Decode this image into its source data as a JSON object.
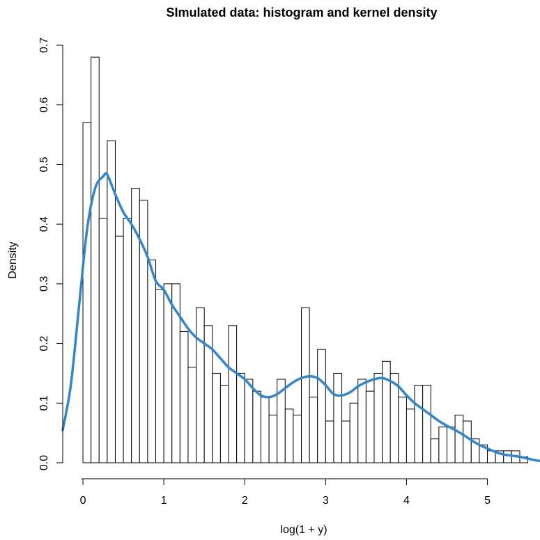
{
  "chart_data": {
    "type": "histogram",
    "title": "SImulated data: histogram and kernel density",
    "xlabel": "log(1 + y)",
    "ylabel": "Density",
    "xlim": [
      -0.25,
      5.65
    ],
    "ylim": [
      0,
      0.7
    ],
    "x_ticks": [
      0,
      1,
      2,
      3,
      4,
      5
    ],
    "y_ticks": [
      0.0,
      0.1,
      0.2,
      0.3,
      0.4,
      0.5,
      0.6,
      0.7
    ],
    "y_tick_labels": [
      "0.0",
      "0.1",
      "0.2",
      "0.3",
      "0.4",
      "0.5",
      "0.6",
      "0.7"
    ],
    "bin_width": 0.1,
    "bin_start": 0.0,
    "histogram_densities": [
      0.57,
      0.68,
      0.41,
      0.54,
      0.38,
      0.41,
      0.46,
      0.44,
      0.34,
      0.29,
      0.3,
      0.3,
      0.22,
      0.16,
      0.26,
      0.23,
      0.15,
      0.13,
      0.23,
      0.15,
      0.14,
      0.12,
      0.11,
      0.08,
      0.14,
      0.09,
      0.08,
      0.26,
      0.11,
      0.19,
      0.07,
      0.15,
      0.07,
      0.1,
      0.14,
      0.12,
      0.15,
      0.17,
      0.15,
      0.11,
      0.09,
      0.13,
      0.13,
      0.04,
      0.06,
      0.06,
      0.08,
      0.07,
      0.04,
      0.03,
      0.02,
      0.02,
      0.02,
      0.02,
      0.01
    ],
    "density_curve": {
      "color": "#2f86d1",
      "x": [
        -0.25,
        -0.15,
        -0.05,
        0.05,
        0.15,
        0.25,
        0.3,
        0.4,
        0.5,
        0.6,
        0.7,
        0.8,
        0.9,
        1.0,
        1.1,
        1.2,
        1.3,
        1.4,
        1.5,
        1.6,
        1.7,
        1.8,
        1.9,
        2.0,
        2.1,
        2.2,
        2.3,
        2.4,
        2.5,
        2.6,
        2.7,
        2.8,
        2.9,
        3.0,
        3.1,
        3.2,
        3.3,
        3.4,
        3.5,
        3.6,
        3.7,
        3.8,
        3.9,
        4.0,
        4.1,
        4.2,
        4.3,
        4.4,
        4.5,
        4.6,
        4.7,
        4.8,
        4.9,
        5.0,
        5.1,
        5.2,
        5.3,
        5.4,
        5.5,
        5.6,
        5.65
      ],
      "y": [
        0.055,
        0.13,
        0.26,
        0.39,
        0.46,
        0.48,
        0.483,
        0.45,
        0.42,
        0.4,
        0.375,
        0.345,
        0.305,
        0.29,
        0.265,
        0.245,
        0.225,
        0.21,
        0.2,
        0.19,
        0.175,
        0.16,
        0.15,
        0.14,
        0.125,
        0.113,
        0.11,
        0.115,
        0.125,
        0.135,
        0.142,
        0.145,
        0.142,
        0.13,
        0.115,
        0.113,
        0.118,
        0.128,
        0.135,
        0.14,
        0.142,
        0.137,
        0.128,
        0.113,
        0.1,
        0.09,
        0.08,
        0.07,
        0.062,
        0.055,
        0.047,
        0.038,
        0.03,
        0.024,
        0.018,
        0.014,
        0.012,
        0.01,
        0.007,
        0.004,
        0.003
      ]
    }
  }
}
